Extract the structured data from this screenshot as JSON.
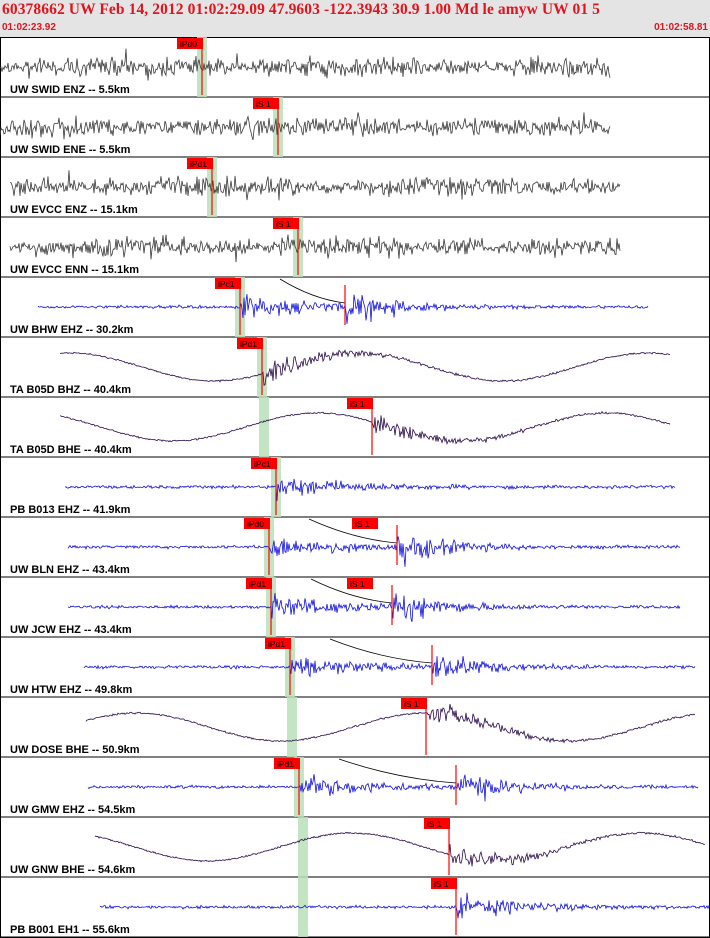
{
  "header": {
    "title": "60378662 UW Feb 14, 2012 01:02:29.09   47.9603 -122.3943 30.9 1.00 Md le amyw UW 01   5",
    "start_time": "01:02:23.92",
    "end_time": "01:02:58.81"
  },
  "colors": {
    "header_bg": "#e4e4e4",
    "header_text": "#e0141e",
    "trace_gray": "#3a3a3a",
    "trace_blue": "#1010e0",
    "trace_purple": "#2a0a4a",
    "pick_red": "#ff0000",
    "window_green": "#b8e0b8",
    "tick_red": "#ff0000"
  },
  "traces": [
    {
      "label": "UW SWID ENZ -- 5.5km",
      "color": "gray",
      "style": "noise",
      "pick": "iPd0",
      "pick_type": "P"
    },
    {
      "label": "UW SWID ENE -- 5.5km",
      "color": "gray",
      "style": "noise",
      "pick": "iS 1",
      "pick_type": "S"
    },
    {
      "label": "UW EVCC ENZ -- 15.1km",
      "color": "gray",
      "style": "noise",
      "pick": "iPd1",
      "pick_type": "P"
    },
    {
      "label": "UW EVCC ENN -- 15.1km",
      "color": "gray",
      "style": "noise",
      "pick": "iS 1",
      "pick_type": "S"
    },
    {
      "label": "UW BHW EHZ -- 30.2km",
      "color": "blue",
      "style": "event",
      "pick": "iPc1",
      "pick_type": "P"
    },
    {
      "label": "TA B05D BHZ -- 40.4km",
      "color": "purple",
      "style": "wave",
      "pick": "iPd1",
      "pick_type": "P"
    },
    {
      "label": "TA B05D BHE -- 40.4km",
      "color": "purple",
      "style": "wave",
      "pick": "iS 1",
      "pick_type": "S"
    },
    {
      "label": "PB B013 EHZ -- 41.9km",
      "color": "blue",
      "style": "event",
      "pick": "iPc1",
      "pick_type": "P"
    },
    {
      "label": "UW BLN EHZ -- 43.4km",
      "color": "blue",
      "style": "event",
      "pick": "iPd0",
      "pick_type": "P",
      "pick2": "iS 1"
    },
    {
      "label": "UW JCW EHZ -- 43.4km",
      "color": "blue",
      "style": "event",
      "pick": "iPd1",
      "pick_type": "P",
      "pick2": "iS 1"
    },
    {
      "label": "UW HTW EHZ -- 49.8km",
      "color": "blue",
      "style": "event",
      "pick": "iPd1",
      "pick_type": "P"
    },
    {
      "label": "UW DOSE BHE -- 50.9km",
      "color": "purple",
      "style": "wave",
      "pick": "iS 1",
      "pick_type": "S"
    },
    {
      "label": "UW GMW EHZ -- 54.5km",
      "color": "blue",
      "style": "event",
      "pick": "iPd1",
      "pick_type": "P"
    },
    {
      "label": "UW GNW BHE -- 54.6km",
      "color": "purple",
      "style": "wave",
      "pick": "iS 1",
      "pick_type": "S"
    },
    {
      "label": "PB B001 EH1 -- 55.6km",
      "color": "blue",
      "style": "event",
      "pick": "iS 1",
      "pick_type": "S"
    }
  ]
}
